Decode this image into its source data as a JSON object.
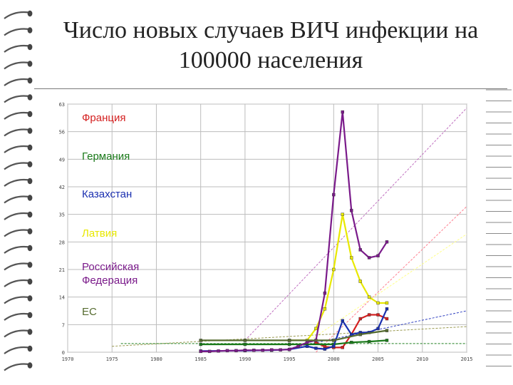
{
  "title": "Число новых случаев ВИЧ инфекции на 100000 населения",
  "chart_data": {
    "type": "line",
    "xlim": [
      1970,
      2015
    ],
    "ylim": [
      0,
      63
    ],
    "x_ticks": [
      "1970",
      "1975",
      "1980",
      "1985",
      "1990",
      "1995",
      "2000",
      "2005",
      "2010",
      "2015"
    ],
    "y_ticks": [
      "0",
      "7",
      "14",
      "21",
      "28",
      "35",
      "42",
      "49",
      "56",
      "63"
    ],
    "grid": true,
    "legend_position": "left",
    "series": [
      {
        "name": "Франция",
        "color": "#d42020",
        "points": [
          [
            1998,
            2.5
          ],
          [
            1999,
            1.4
          ],
          [
            2000,
            1.2
          ],
          [
            2001,
            1.2
          ],
          [
            2002,
            4.5
          ],
          [
            2003,
            8.5
          ],
          [
            2004,
            9.5
          ],
          [
            2005,
            9.5
          ],
          [
            2006,
            8.5
          ]
        ]
      },
      {
        "name": "Германия",
        "color": "#1a7a1a",
        "points": [
          [
            1985,
            2
          ],
          [
            1990,
            2
          ],
          [
            1995,
            2
          ],
          [
            2000,
            2
          ],
          [
            2002,
            2.5
          ],
          [
            2004,
            2.7
          ],
          [
            2006,
            3
          ]
        ]
      },
      {
        "name": "Казахстан",
        "color": "#1a2fb0",
        "points": [
          [
            1985,
            0.3
          ],
          [
            1990,
            0.4
          ],
          [
            1993,
            0.5
          ],
          [
            1995,
            0.7
          ],
          [
            1997,
            1.5
          ],
          [
            1998,
            1
          ],
          [
            1999,
            0.8
          ],
          [
            2000,
            1.5
          ],
          [
            2001,
            8
          ],
          [
            2002,
            4.5
          ],
          [
            2003,
            5
          ],
          [
            2004,
            5
          ],
          [
            2005,
            6
          ],
          [
            2006,
            11
          ]
        ]
      },
      {
        "name": "Латвия",
        "color": "#e8e800",
        "points": [
          [
            1995,
            3
          ],
          [
            1997,
            3
          ],
          [
            1998,
            6
          ],
          [
            1999,
            11
          ],
          [
            2000,
            21
          ],
          [
            2001,
            35
          ],
          [
            2002,
            24
          ],
          [
            2003,
            18
          ],
          [
            2004,
            14
          ],
          [
            2005,
            12.5
          ],
          [
            2006,
            12.5
          ]
        ]
      },
      {
        "name": "Российская\nФедерация",
        "color": "#7a1a8a",
        "points": [
          [
            1985,
            0.2
          ],
          [
            1986,
            0.2
          ],
          [
            1987,
            0.3
          ],
          [
            1988,
            0.4
          ],
          [
            1989,
            0.4
          ],
          [
            1990,
            0.5
          ],
          [
            1991,
            0.5
          ],
          [
            1992,
            0.5
          ],
          [
            1993,
            0.6
          ],
          [
            1994,
            0.6
          ],
          [
            1995,
            0.7
          ],
          [
            1996,
            1.5
          ],
          [
            1997,
            2.5
          ],
          [
            1998,
            3
          ],
          [
            1999,
            15
          ],
          [
            2000,
            40
          ],
          [
            2001,
            61
          ],
          [
            2002,
            36
          ],
          [
            2003,
            26
          ],
          [
            2004,
            24
          ],
          [
            2005,
            24.5
          ],
          [
            2006,
            28
          ]
        ]
      },
      {
        "name": "ЕС",
        "color": "#556b2f",
        "points": [
          [
            1985,
            3
          ],
          [
            1990,
            3
          ],
          [
            1995,
            3
          ],
          [
            2000,
            3
          ],
          [
            2003,
            4.5
          ],
          [
            2006,
            5.5
          ]
        ]
      }
    ],
    "trend_lines": [
      {
        "color": "#c070c0",
        "from": [
          1990,
          3
        ],
        "to": [
          2015,
          62
        ]
      },
      {
        "color": "#ff8090",
        "from": [
          1998,
          0
        ],
        "to": [
          2015,
          37
        ]
      },
      {
        "color": "#ffff88",
        "from": [
          1996,
          1
        ],
        "to": [
          2015,
          30
        ]
      },
      {
        "color": "#3040c0",
        "from": [
          1995,
          1
        ],
        "to": [
          2015,
          10.5
        ]
      },
      {
        "color": "#9a9a50",
        "from": [
          1975,
          1.5
        ],
        "to": [
          2015,
          6.5
        ]
      },
      {
        "color": "#208020",
        "from": [
          1976,
          2.2
        ],
        "to": [
          2015,
          2.2
        ]
      }
    ]
  }
}
